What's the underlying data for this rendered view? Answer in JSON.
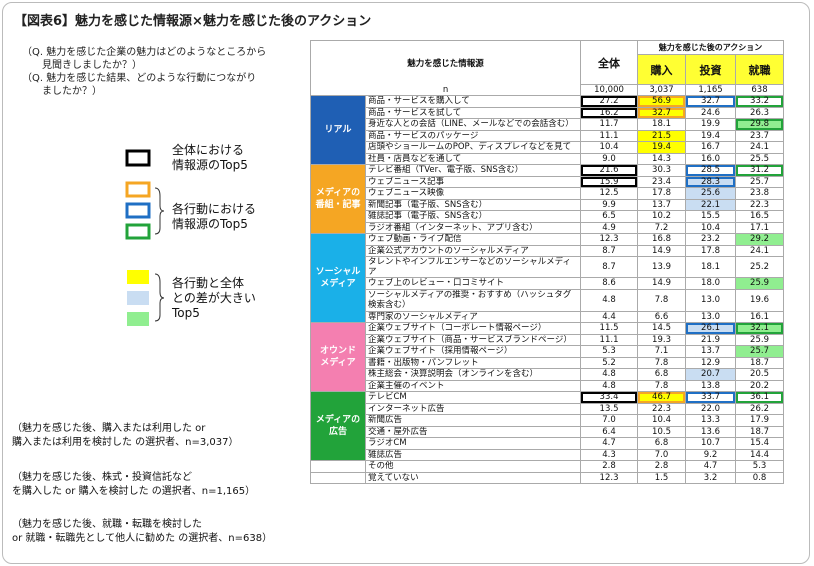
{
  "title": "【図表6】魅力を感じた情報源×魅力を感じた後のアクション",
  "questions": [
    "（Q.  魅力を感じた企業の魅力はどのようなところから",
    "見聞きしましたか？）",
    "（Q.  魅力を感じた結果、どのような行動につながり",
    "ましたか？）"
  ],
  "legend": {
    "total_top5": [
      "全体における",
      "情報源のTop5"
    ],
    "action_top5": [
      "各行動における",
      "情報源のTop5"
    ],
    "diff_top5": [
      "各行動と全体",
      "との差が大きい",
      "Top5"
    ]
  },
  "notes": [
    [
      "（魅力を感じた後、購入または利用した or",
      "購入または利用を検討した の選択者、n=3,037）"
    ],
    [
      "（魅力を感じた後、株式・投資信託など",
      "を購入した or 購入を検討した の選択者、n=1,165）"
    ],
    [
      "（魅力を感じた後、就職・転職を検討した",
      " or 就職・転職先として他人に勧めた の選択者、n=638）"
    ]
  ],
  "table": {
    "header": {
      "source": "魅力を感じた情報源",
      "total": "全体",
      "action": "魅力を感じた後のアクション",
      "actions": [
        "購入",
        "投資",
        "就職"
      ],
      "n_label": "n",
      "n": [
        "10,000",
        "3,037",
        "1,165",
        "638"
      ]
    },
    "groups": [
      {
        "label": [
          "リアル"
        ],
        "rows": [
          {
            "source": "商品・サービスを購入して",
            "values": [
              "27.2",
              "56.9",
              "32.7",
              "33.2"
            ]
          },
          {
            "source": "商品・サービスを試して",
            "values": [
              "16.2",
              "32.7",
              "24.6",
              "26.3"
            ]
          },
          {
            "source": "身近な人との会話（LINE、メールなどでの会話含む）",
            "values": [
              "11.7",
              "18.1",
              "19.9",
              "29.8"
            ]
          },
          {
            "source": "商品・サービスのパッケージ",
            "values": [
              "11.1",
              "21.5",
              "19.4",
              "23.7"
            ]
          },
          {
            "source": "店頭やショールームのPOP、ディスプレイなどを見て",
            "values": [
              "10.4",
              "19.4",
              "16.7",
              "24.1"
            ]
          },
          {
            "source": "社員・店員などを通して",
            "values": [
              "9.0",
              "14.3",
              "16.0",
              "25.5"
            ]
          }
        ]
      },
      {
        "label": [
          "メディアの",
          "番組・記事"
        ],
        "rows": [
          {
            "source": "テレビ番組（TVer、電子版、SNS含む）",
            "values": [
              "21.6",
              "30.3",
              "28.5",
              "31.2"
            ]
          },
          {
            "source": "ウェブニュース記事",
            "values": [
              "15.9",
              "23.4",
              "28.3",
              "25.7"
            ]
          },
          {
            "source": "ウェブニュース映像",
            "values": [
              "12.5",
              "17.8",
              "25.6",
              "23.8"
            ]
          },
          {
            "source": "新聞記事（電子版、SNS含む）",
            "values": [
              "9.9",
              "13.7",
              "22.1",
              "22.3"
            ]
          },
          {
            "source": "雑誌記事（電子版、SNS含む）",
            "values": [
              "6.5",
              "10.2",
              "15.5",
              "16.5"
            ]
          },
          {
            "source": "ラジオ番組（インターネット、アプリ含む）",
            "values": [
              "4.9",
              "7.2",
              "10.4",
              "17.1"
            ]
          }
        ]
      },
      {
        "label": [
          "ソーシャル",
          "メディア"
        ],
        "rows": [
          {
            "source": "ウェブ動画・ライブ配信",
            "values": [
              "12.3",
              "16.8",
              "23.2",
              "29.2"
            ]
          },
          {
            "source": "企業公式アカウントのソーシャルメディア",
            "values": [
              "8.7",
              "14.9",
              "17.8",
              "24.1"
            ]
          },
          {
            "source": "タレントやインフルエンサーなどのソーシャルメディア",
            "values": [
              "8.7",
              "13.9",
              "18.1",
              "25.2"
            ]
          },
          {
            "source": "ウェブ上のレビュー・口コミサイト",
            "values": [
              "8.6",
              "14.9",
              "18.0",
              "25.9"
            ]
          },
          {
            "source": "ソーシャルメディアの推奨・おすすめ（ハッシュタグ検索含む）",
            "values": [
              "4.8",
              "7.8",
              "13.0",
              "19.6"
            ]
          },
          {
            "source": "専門家のソーシャルメディア",
            "values": [
              "4.4",
              "6.6",
              "13.0",
              "16.1"
            ]
          }
        ]
      },
      {
        "label": [
          "オウンド",
          "メディア"
        ],
        "rows": [
          {
            "source": "企業ウェブサイト（コーポレート情報ページ）",
            "values": [
              "11.5",
              "14.5",
              "26.1",
              "32.1"
            ]
          },
          {
            "source": "企業ウェブサイト（商品・サービスブランドページ）",
            "values": [
              "11.1",
              "19.3",
              "21.9",
              "25.9"
            ]
          },
          {
            "source": "企業ウェブサイト（採用情報ページ）",
            "values": [
              "5.3",
              "7.1",
              "13.7",
              "25.7"
            ]
          },
          {
            "source": "書籍・出版物・パンフレット",
            "values": [
              "5.2",
              "7.8",
              "12.9",
              "18.7"
            ]
          },
          {
            "source": "株主総会・決算説明会（オンラインを含む）",
            "values": [
              "4.8",
              "6.8",
              "20.7",
              "20.5"
            ]
          },
          {
            "source": "企業主催のイベント",
            "values": [
              "4.8",
              "7.8",
              "13.8",
              "20.2"
            ]
          }
        ]
      },
      {
        "label": [
          "メディアの",
          "広告"
        ],
        "rows": [
          {
            "source": "テレビCM",
            "values": [
              "33.4",
              "46.7",
              "33.7",
              "36.1"
            ]
          },
          {
            "source": "インターネット広告",
            "values": [
              "13.5",
              "22.3",
              "22.0",
              "26.2"
            ]
          },
          {
            "source": "新聞広告",
            "values": [
              "7.0",
              "10.4",
              "13.3",
              "17.9"
            ]
          },
          {
            "source": "交通・屋外広告",
            "values": [
              "6.4",
              "10.5",
              "13.6",
              "18.7"
            ]
          },
          {
            "source": "ラジオCM",
            "values": [
              "4.7",
              "6.8",
              "10.7",
              "15.4"
            ]
          },
          {
            "source": "雑誌広告",
            "values": [
              "4.3",
              "7.0",
              "9.2",
              "14.4"
            ]
          }
        ]
      }
    ],
    "ungrouped_rows": [
      {
        "source": "その他",
        "values": [
          "2.8",
          "2.8",
          "4.7",
          "5.3"
        ]
      },
      {
        "source": "覚えていない",
        "values": [
          "12.3",
          "1.5",
          "3.2",
          "0.8"
        ]
      }
    ]
  }
}
